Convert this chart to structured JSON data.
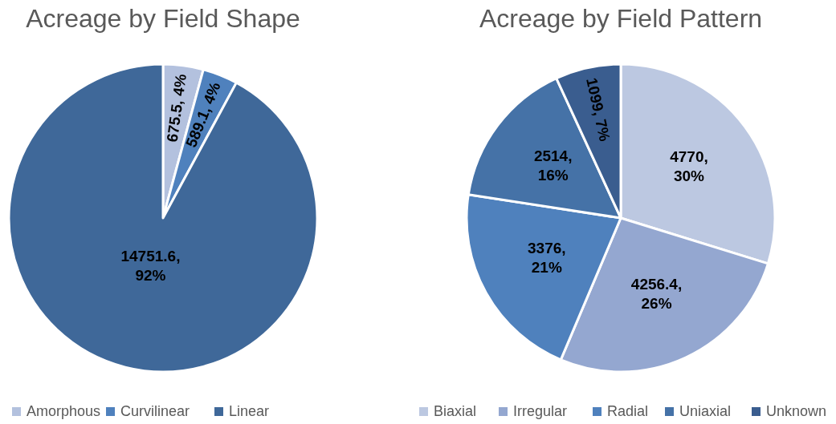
{
  "chart_data": [
    {
      "type": "pie",
      "title": "Acreage by Field Shape",
      "categories": [
        "Amorphous",
        "Curvilinear",
        "Linear"
      ],
      "values": [
        675.5,
        589.1,
        14751.6
      ],
      "colors": [
        "#b3c1de",
        "#4f81bd",
        "#3f6899"
      ],
      "value_labels": [
        "675.5, 4%",
        "589.1, 4%",
        "14751.6, 92%"
      ],
      "legend": "bottom"
    },
    {
      "type": "pie",
      "title": "Acreage by Field Pattern",
      "categories": [
        "Biaxial",
        "Irregular",
        "Radial",
        "Uniaxial",
        "Unknown"
      ],
      "values": [
        4770,
        4256.4,
        3376,
        2514,
        1099
      ],
      "colors": [
        "#bcc8e1",
        "#94a7d0",
        "#4f81bd",
        "#4572a7",
        "#3a5d8f"
      ],
      "value_labels": [
        "4770, 30%",
        "4256.4, 26%",
        "3376, 21%",
        "2514, 16%",
        "1099, 7%"
      ],
      "legend": "bottom"
    }
  ]
}
